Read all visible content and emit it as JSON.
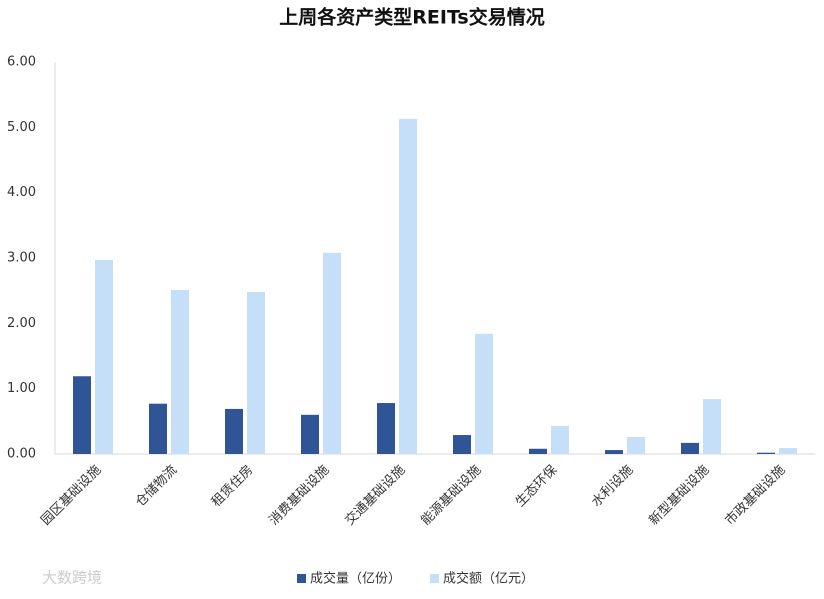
{
  "chart_data": {
    "type": "bar",
    "title": "上周各资产类型REITs交易情况",
    "categories": [
      "园区基础设施",
      "仓储物流",
      "租赁住房",
      "消费基础设施",
      "交通基础设施",
      "能源基础设施",
      "生态环保",
      "水利设施",
      "新型基础设施",
      "市政基础设施"
    ],
    "series": [
      {
        "name": "成交量（亿份）",
        "color": "#2f5597",
        "values": [
          1.19,
          0.77,
          0.69,
          0.6,
          0.78,
          0.29,
          0.08,
          0.06,
          0.17,
          0.02
        ]
      },
      {
        "name": "成交额（亿元）",
        "color": "#c5dff8",
        "values": [
          2.97,
          2.51,
          2.48,
          3.08,
          5.13,
          1.84,
          0.43,
          0.26,
          0.84,
          0.09
        ]
      }
    ],
    "ylim": [
      0,
      6
    ],
    "yticks": [
      {
        "value": 0,
        "label": "0.00"
      },
      {
        "value": 1,
        "label": "1.00"
      },
      {
        "value": 2,
        "label": "2.00"
      },
      {
        "value": 3,
        "label": "3.00"
      },
      {
        "value": 4,
        "label": "4.00"
      },
      {
        "value": 5,
        "label": "5.00"
      },
      {
        "value": 6,
        "label": "6.00"
      }
    ],
    "legend": "bottom",
    "watermark": "大数跨境"
  }
}
